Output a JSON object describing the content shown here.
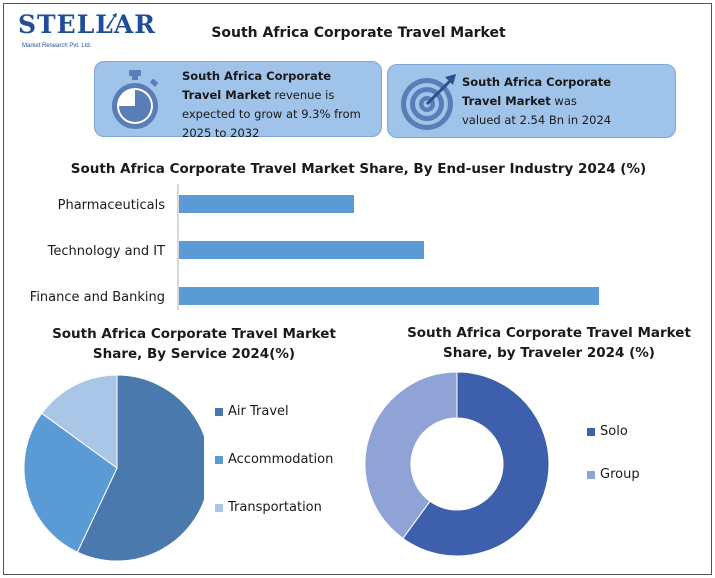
{
  "brand": {
    "name": "STELLAR",
    "tagline": "Market Research Pvt. Ltd."
  },
  "page_title": "South Africa Corporate Travel Market",
  "cards": [
    {
      "icon": "stopwatch-icon",
      "bold": "South Africa Corporate Travel Market",
      "text": " revenue is expected to grow at 9.3% from 2025 to 2032"
    },
    {
      "icon": "target-icon",
      "bold": "South Africa Corporate Travel Market",
      "text": " was valued at 2.54 Bn in 2024"
    }
  ],
  "colors": {
    "card_bg": "#9fc3e9",
    "bar": "#5b9bd5",
    "air_travel": "#4a79ae",
    "accommodation": "#5b9bd5",
    "transportation": "#a9c6e6",
    "solo": "#3e5fab",
    "group": "#8fa3d6"
  },
  "chart_data": [
    {
      "type": "bar",
      "orientation": "horizontal",
      "title": "South Africa Corporate Travel Market Share, By End-user Industry 2024 (%)",
      "categories": [
        "Pharmaceuticals",
        "Technology and IT",
        "Finance and Banking"
      ],
      "values": [
        20,
        28,
        48
      ],
      "xlim": [
        0,
        60
      ],
      "grid": false,
      "axis_labels": false
    },
    {
      "type": "pie",
      "title_line1": "South Africa Corporate Travel Market",
      "title_line2": "Share, By Service 2024(%)",
      "labels": [
        "Air Travel",
        "Accommodation",
        "Transportation"
      ],
      "values": [
        57,
        28,
        15
      ],
      "legend": "right"
    },
    {
      "type": "pie",
      "variant": "donut",
      "title_line1": "South Africa Corporate Travel Market",
      "title_line2": "Share, by Traveler 2024 (%)",
      "labels": [
        "Solo",
        "Group"
      ],
      "values": [
        60,
        40
      ],
      "legend": "right"
    }
  ]
}
